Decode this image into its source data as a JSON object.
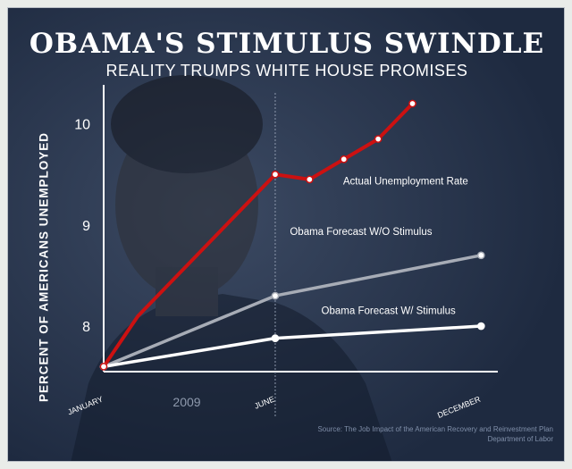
{
  "title": "OBAMA'S STIMULUS SWINDLE",
  "subtitle": "REALITY TRUMPS WHITE HOUSE PROMISES",
  "source_line1": "Source: The Job Impact of the American Recovery and Reinvestment Plan",
  "source_line2": "Department of Labor",
  "colors": {
    "background": "#1e2a40",
    "actual": "#cc1111",
    "forecast_without": "#a7acb6",
    "forecast_with": "#ffffff"
  },
  "chart_data": {
    "type": "line",
    "ylabel": "PERCENT OF AMERICANS UNEMPLOYED",
    "year_label": "2009",
    "x_ticks": [
      {
        "x": 0,
        "label": "JANUARY"
      },
      {
        "x": 5,
        "label": "JUNE"
      },
      {
        "x": 11,
        "label": "DECEMBER"
      }
    ],
    "y_ticks": [
      8,
      9,
      10
    ],
    "ylim": [
      7.55,
      10.35
    ],
    "xlim": [
      0,
      11.8
    ],
    "reference_line_x": 5,
    "series": [
      {
        "name": "Actual Unemployment Rate",
        "color": "#cc1111",
        "x": [
          0,
          1,
          2,
          3,
          4,
          5,
          6,
          7,
          8,
          9
        ],
        "y": [
          7.6,
          8.1,
          8.45,
          8.8,
          9.15,
          9.5,
          9.45,
          9.65,
          9.85,
          10.2
        ],
        "markers": [
          0,
          5,
          6,
          7,
          8,
          9
        ],
        "label_at": [
          8.8,
          9.4
        ]
      },
      {
        "name": "Obama Forecast W/O Stimulus",
        "color": "#a7acb6",
        "x": [
          0,
          5,
          11
        ],
        "y": [
          7.6,
          8.3,
          8.7
        ],
        "markers": [
          0,
          1,
          2
        ],
        "label_at": [
          7.5,
          8.9
        ]
      },
      {
        "name": "Obama Forecast W/ Stimulus",
        "color": "#ffffff",
        "x": [
          0,
          5,
          11
        ],
        "y": [
          7.6,
          7.88,
          8.0
        ],
        "markers": [
          0,
          1,
          2
        ],
        "label_at": [
          8.3,
          8.12
        ]
      }
    ]
  }
}
